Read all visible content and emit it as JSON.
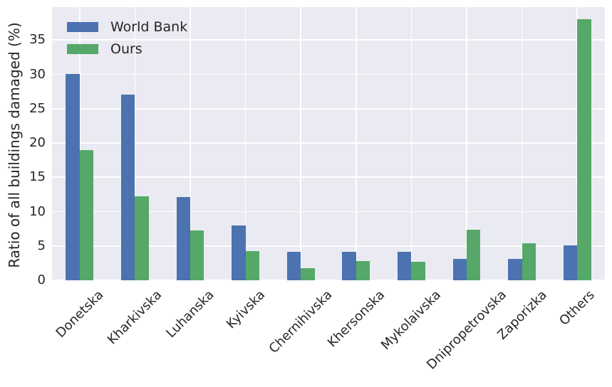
{
  "figure": {
    "background": "#ffffff",
    "plot_background": "#eaeaf2",
    "grid_color": "#ffffff",
    "text_color": "#262626"
  },
  "chart_data": {
    "type": "bar",
    "title": "",
    "xlabel": "",
    "ylabel": "Ratio of all buildings damaged (%)",
    "categories": [
      "Donetska",
      "Kharkivska",
      "Luhanska",
      "Kyivska",
      "Chernihivska",
      "Khersonska",
      "Mykolaivska",
      "Dnipropetrovska",
      "Zaporizka",
      "Others"
    ],
    "series": [
      {
        "name": "World Bank",
        "color": "#4c72b0",
        "values": [
          30.1,
          27.1,
          12.1,
          8.0,
          4.1,
          4.1,
          4.1,
          3.1,
          3.1,
          5.1
        ]
      },
      {
        "name": "Ours",
        "color": "#55a868",
        "values": [
          19.0,
          12.2,
          7.3,
          4.2,
          1.8,
          2.8,
          2.7,
          7.4,
          5.4,
          38.0
        ]
      }
    ],
    "yticks": [
      0,
      5,
      10,
      15,
      20,
      25,
      30,
      35
    ],
    "ylim": [
      0,
      39.8
    ],
    "grid": true,
    "legend_position": "upper left",
    "x_tick_rotation": 45
  }
}
